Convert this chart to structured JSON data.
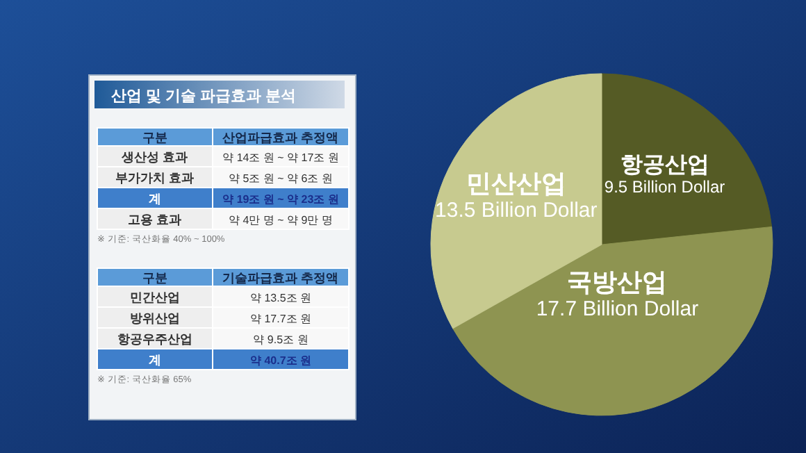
{
  "chart_data": [
    {
      "type": "other",
      "title": "산업 및 기술 파급효과 분석",
      "categories": [
        "구분",
        "생산성 효과",
        "부가가치 효과",
        "계",
        "고용 효과"
      ],
      "value_labels": [
        "산업파급효과 추정액",
        "약 14조 원 ~ 약 17조 원",
        "약 5조 원 ~ 약 6조 원",
        "약 19조 원 ~ 약 23조 원",
        "약 4만 명 ~ 약 9만 명"
      ],
      "colors": [
        "#5b9bd8",
        "#eeeeee",
        "#eeeeee",
        "#3f7fcb",
        "#eeeeee"
      ],
      "annotations": [
        "※ 기준: 국산화율 40% ~ 100%"
      ]
    },
    {
      "type": "other",
      "categories": [
        "구분",
        "민간산업",
        "방위산업",
        "항공우주산업",
        "계"
      ],
      "value_labels": [
        "기술파급효과 추정액",
        "약 13.5조 원",
        "약 17.7조 원",
        "약 9.5조 원",
        "약 40.7조 원"
      ],
      "colors": [
        "#5b9bd8",
        "#eeeeee",
        "#eeeeee",
        "#eeeeee",
        "#3f7fcb"
      ],
      "annotations": [
        "※ 기준: 국산화율 65%"
      ]
    },
    {
      "type": "pie",
      "categories": [
        "항공산업",
        "국방산업",
        "민산산업"
      ],
      "values": [
        9.5,
        17.7,
        13.5
      ],
      "colors": [
        "#555b25",
        "#8e9451",
        "#c7ca8f"
      ],
      "value_labels": [
        "9.5 Billion Dollar",
        "17.7 Billion Dollar",
        "13.5 Billion Dollar"
      ]
    }
  ]
}
